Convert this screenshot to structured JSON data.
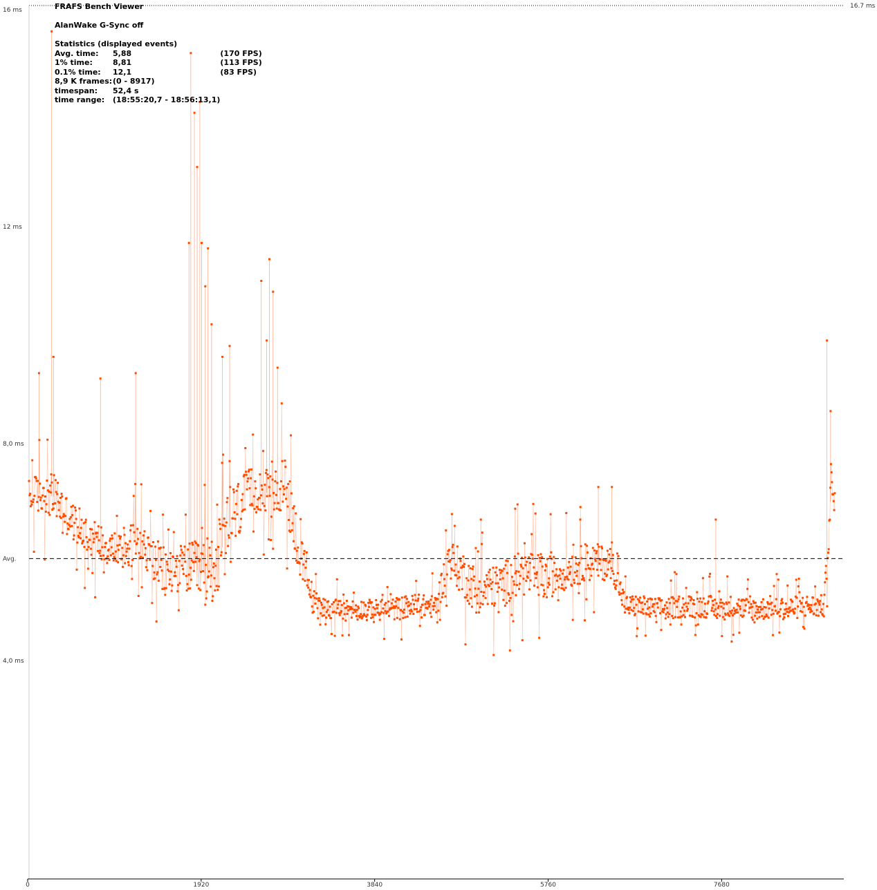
{
  "header": {
    "app_title": "FRAFS Bench Viewer",
    "run_name": "AlanWake G-Sync off",
    "stats_heading": "Statistics (displayed events)"
  },
  "stats": [
    {
      "label": "Avg. time:",
      "value": "5,88",
      "extra": "(170 FPS)"
    },
    {
      "label": "1% time:",
      "value": "8,81",
      "extra": "(113 FPS)"
    },
    {
      "label": "0.1% time:",
      "value": "12,1",
      "extra": "(83 FPS)"
    },
    {
      "label": "8,9 K frames:",
      "value": "(0 - 8917)",
      "extra": ""
    },
    {
      "label": "timespan:",
      "value": "52,4 s",
      "extra": ""
    },
    {
      "label": "time range:",
      "value": "(18:55:20,7 - 18:56:13,1)",
      "extra": ""
    }
  ],
  "chart_data": {
    "type": "scatter",
    "title": "AlanWake G-Sync off",
    "y_unit": "ms",
    "y_ticks": [
      {
        "value": 16,
        "label": "16 ms"
      },
      {
        "value": 12,
        "label": "12 ms"
      },
      {
        "value": 8,
        "label": "8,0 ms"
      },
      {
        "value": 4,
        "label": "4,0 ms"
      }
    ],
    "avg_label": "Avg.",
    "avg_value": 5.88,
    "ref_line": {
      "value": 16.7,
      "label": "16.7 ms"
    },
    "x_ticks": [
      {
        "value": 0,
        "label": "0"
      },
      {
        "value": 1920,
        "label": "1920"
      },
      {
        "value": 3840,
        "label": "3840"
      },
      {
        "value": 5760,
        "label": "5760"
      },
      {
        "value": 7680,
        "label": "7680"
      }
    ],
    "xlim": [
      0,
      8917
    ],
    "series_color": "#ff4c00",
    "series": [
      {
        "name": "",
        "x": [
          0,
          150,
          300,
          450,
          600,
          750,
          900,
          1050,
          1200,
          1350,
          1500,
          1650,
          1800,
          1950,
          2100,
          2250,
          2400,
          2550,
          2700,
          2850,
          3000,
          3150,
          3300,
          3450,
          3600,
          3750,
          3900,
          4050,
          4200,
          4350,
          4500,
          4650,
          4800,
          4950,
          5100,
          5250,
          5400,
          5550,
          5700,
          5850,
          6000,
          6150,
          6300,
          6450,
          6600,
          6750,
          6900,
          7050,
          7200,
          7350,
          7500,
          7650,
          7800,
          7950,
          8100,
          8250,
          8400,
          8550,
          8700,
          8800,
          8880,
          8917
        ],
        "y": [
          7.0,
          7.1,
          7.0,
          6.6,
          6.4,
          6.2,
          6.1,
          6.0,
          6.3,
          5.9,
          5.6,
          5.7,
          5.7,
          5.6,
          5.9,
          6.6,
          7.0,
          7.2,
          7.0,
          7.3,
          5.9,
          5.1,
          4.95,
          4.95,
          4.95,
          4.95,
          4.95,
          4.95,
          5.0,
          5.0,
          5.0,
          5.9,
          5.6,
          5.3,
          5.3,
          5.4,
          5.6,
          5.6,
          5.5,
          5.6,
          5.7,
          5.8,
          5.8,
          5.8,
          5.0,
          5.0,
          4.95,
          4.95,
          5.0,
          5.0,
          5.0,
          4.95,
          5.0,
          4.95,
          4.95,
          5.0,
          4.95,
          5.0,
          5.0,
          5.0,
          7.2,
          6.8
        ],
        "spread": [
          0.5,
          0.55,
          0.6,
          0.5,
          0.5,
          0.5,
          0.5,
          0.5,
          0.5,
          0.6,
          0.7,
          0.6,
          0.7,
          0.9,
          1.0,
          0.9,
          0.7,
          0.6,
          0.6,
          0.8,
          0.7,
          0.3,
          0.25,
          0.25,
          0.25,
          0.25,
          0.25,
          0.3,
          0.3,
          0.3,
          0.3,
          0.5,
          0.6,
          0.6,
          0.6,
          0.6,
          0.6,
          0.6,
          0.6,
          0.5,
          0.5,
          0.5,
          0.5,
          0.4,
          0.3,
          0.3,
          0.3,
          0.3,
          0.3,
          0.3,
          0.3,
          0.3,
          0.3,
          0.3,
          0.3,
          0.3,
          0.3,
          0.3,
          0.3,
          0.3,
          0.6,
          0.4
        ]
      }
    ],
    "spikes": [
      {
        "x": 250,
        "y": 15.6
      },
      {
        "x": 270,
        "y": 9.6
      },
      {
        "x": 110,
        "y": 9.3
      },
      {
        "x": 790,
        "y": 9.2
      },
      {
        "x": 1180,
        "y": 9.3
      },
      {
        "x": 1790,
        "y": 15.2
      },
      {
        "x": 1830,
        "y": 14.1
      },
      {
        "x": 1890,
        "y": 14.3
      },
      {
        "x": 1860,
        "y": 13.1
      },
      {
        "x": 1910,
        "y": 11.7
      },
      {
        "x": 1770,
        "y": 11.7
      },
      {
        "x": 1980,
        "y": 11.6
      },
      {
        "x": 1950,
        "y": 10.9
      },
      {
        "x": 2020,
        "y": 10.2
      },
      {
        "x": 2140,
        "y": 9.6
      },
      {
        "x": 2220,
        "y": 9.8
      },
      {
        "x": 2570,
        "y": 11.0
      },
      {
        "x": 2660,
        "y": 11.4
      },
      {
        "x": 2700,
        "y": 10.8
      },
      {
        "x": 2750,
        "y": 9.4
      },
      {
        "x": 2630,
        "y": 9.9
      },
      {
        "x": 4680,
        "y": 6.7
      },
      {
        "x": 5000,
        "y": 6.6
      },
      {
        "x": 5380,
        "y": 6.8
      },
      {
        "x": 6300,
        "y": 7.2
      },
      {
        "x": 6450,
        "y": 7.2
      },
      {
        "x": 6100,
        "y": 6.6
      },
      {
        "x": 7600,
        "y": 6.6
      },
      {
        "x": 8830,
        "y": 9.9
      },
      {
        "x": 8870,
        "y": 8.6
      }
    ]
  }
}
